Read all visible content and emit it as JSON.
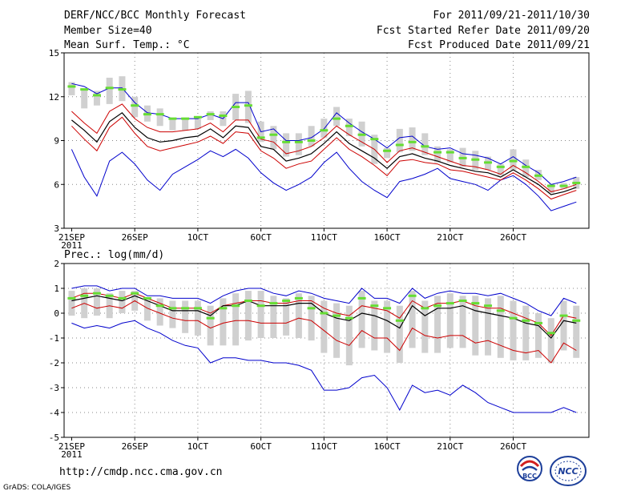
{
  "header": {
    "title": "DERF/NCC/BCC Monthly Forecast",
    "member_size": "Member Size=40",
    "variable_label": "Mean Surf. Temp.: °C",
    "forecast_period": "For 2011/09/21-2011/10/30",
    "start_date": "Fcst Started Refer Date 2011/09/20",
    "produced_date": "Fcst Produced Date 2011/09/21"
  },
  "footer": {
    "url": "http://cmdp.ncc.cma.gov.cn",
    "credit": "GrADS: COLA/IGES",
    "logo_left_text": "BCC",
    "logo_right_text": "NCC"
  },
  "colors": {
    "box": "#d0d0d0",
    "mean": "#66dd33",
    "outer": "#0000cc",
    "inner": "#cc0000",
    "median": "#000000"
  },
  "chart_data": [
    {
      "type": "box",
      "title": "Mean Surf. Temp.: °C",
      "ylabel": "°C",
      "ylim": [
        3,
        15
      ],
      "yticks": [
        3,
        6,
        9,
        12,
        15
      ],
      "xlim": [
        -0.6,
        41
      ],
      "xticks": [
        {
          "day": 0,
          "label": "21SEP",
          "sub": "2011"
        },
        {
          "day": 5,
          "label": "26SEP",
          "sub": ""
        },
        {
          "day": 10,
          "label": "1OCT",
          "sub": ""
        },
        {
          "day": 15,
          "label": "6OCT",
          "sub": ""
        },
        {
          "day": 20,
          "label": "11OCT",
          "sub": ""
        },
        {
          "day": 25,
          "label": "16OCT",
          "sub": ""
        },
        {
          "day": 30,
          "label": "21OCT",
          "sub": ""
        },
        {
          "day": 35,
          "label": "26OCT",
          "sub": ""
        }
      ],
      "grid": true,
      "series": {
        "upper_outer": [
          12.9,
          12.7,
          12.2,
          12.6,
          12.6,
          11.6,
          10.9,
          10.8,
          10.5,
          10.5,
          10.5,
          10.8,
          10.5,
          11.6,
          11.6,
          9.6,
          9.8,
          9.0,
          9.0,
          9.2,
          9.8,
          10.9,
          10.2,
          9.6,
          9.1,
          8.5,
          9.2,
          9.3,
          8.6,
          8.4,
          8.5,
          8.1,
          8.0,
          7.8,
          7.4,
          7.9,
          7.3,
          6.8,
          6.0,
          6.2,
          6.5
        ],
        "upper_inner": [
          11.0,
          10.2,
          9.5,
          11.0,
          11.5,
          10.5,
          9.9,
          9.6,
          9.6,
          9.7,
          9.8,
          10.2,
          9.6,
          10.4,
          10.4,
          9.1,
          8.9,
          8.1,
          8.3,
          8.6,
          9.2,
          10.0,
          9.4,
          8.9,
          8.4,
          7.5,
          8.3,
          8.5,
          8.2,
          7.9,
          7.6,
          7.3,
          7.2,
          7.0,
          6.7,
          7.3,
          6.8,
          6.2,
          5.5,
          5.7,
          6.0
        ],
        "median": [
          10.4,
          9.7,
          8.9,
          10.3,
          10.9,
          9.9,
          9.2,
          8.9,
          9.0,
          9.2,
          9.3,
          9.8,
          9.2,
          10.0,
          9.9,
          8.6,
          8.4,
          7.6,
          7.8,
          8.1,
          8.8,
          9.6,
          8.8,
          8.3,
          7.8,
          7.1,
          7.9,
          8.1,
          7.8,
          7.6,
          7.3,
          7.1,
          6.9,
          6.8,
          6.5,
          7.0,
          6.5,
          6.0,
          5.3,
          5.5,
          5.8
        ],
        "lower_inner": [
          10.0,
          9.1,
          8.3,
          9.9,
          10.6,
          9.5,
          8.6,
          8.3,
          8.5,
          8.7,
          8.9,
          9.3,
          8.8,
          9.6,
          9.5,
          8.3,
          7.8,
          7.1,
          7.4,
          7.6,
          8.4,
          9.2,
          8.4,
          7.9,
          7.3,
          6.6,
          7.6,
          7.7,
          7.5,
          7.4,
          7.0,
          6.9,
          6.7,
          6.5,
          6.3,
          6.8,
          6.3,
          5.7,
          5.0,
          5.3,
          5.6
        ],
        "lower_outer": [
          8.4,
          6.5,
          5.2,
          7.6,
          8.2,
          7.4,
          6.3,
          5.6,
          6.7,
          7.2,
          7.7,
          8.3,
          7.9,
          8.4,
          7.8,
          6.8,
          6.1,
          5.6,
          6.0,
          6.5,
          7.5,
          8.2,
          7.1,
          6.2,
          5.6,
          5.1,
          6.2,
          6.4,
          6.7,
          7.1,
          6.4,
          6.2,
          6.0,
          5.6,
          6.3,
          6.6,
          6.0,
          5.2,
          4.2,
          4.5,
          4.8
        ],
        "ensemble_mean": [
          12.7,
          12.5,
          12.1,
          12.6,
          12.5,
          11.4,
          10.8,
          10.8,
          10.5,
          10.5,
          10.6,
          10.8,
          10.7,
          11.3,
          11.4,
          9.2,
          9.4,
          8.9,
          8.9,
          9.0,
          9.7,
          10.5,
          10.0,
          9.4,
          9.1,
          8.3,
          8.7,
          8.9,
          8.6,
          8.2,
          8.2,
          7.8,
          7.7,
          7.5,
          7.2,
          7.6,
          7.2,
          6.6,
          5.9,
          5.9,
          6.1
        ],
        "box_top": [
          13.0,
          12.5,
          12.4,
          13.3,
          13.4,
          12.0,
          11.4,
          11.2,
          10.5,
          10.5,
          10.5,
          11.0,
          11.0,
          12.2,
          12.4,
          10.3,
          10.0,
          9.5,
          9.5,
          10.0,
          10.5,
          11.3,
          10.5,
          10.3,
          9.4,
          8.5,
          9.8,
          9.9,
          9.5,
          8.6,
          8.4,
          8.5,
          8.3,
          7.9,
          7.4,
          8.4,
          7.7,
          7.0,
          6.0,
          6.1,
          6.5
        ],
        "box_bottom": [
          12.1,
          11.2,
          11.4,
          11.5,
          11.7,
          10.6,
          10.3,
          10.0,
          9.7,
          9.7,
          9.8,
          10.4,
          10.0,
          10.4,
          10.2,
          8.9,
          8.4,
          7.9,
          8.0,
          8.6,
          9.2,
          10.0,
          9.3,
          8.6,
          7.4,
          7.8,
          8.2,
          8.3,
          8.0,
          7.5,
          7.5,
          7.2,
          7.0,
          7.0,
          6.6,
          7.0,
          6.5,
          6.3,
          5.4,
          5.7,
          5.7
        ]
      }
    },
    {
      "type": "box",
      "title": "Prec.: log(mm/d)",
      "ylabel": "log(mm/d)",
      "ylim": [
        -5,
        2
      ],
      "yticks": [
        -5,
        -4,
        -3,
        -2,
        -1,
        0,
        1,
        2
      ],
      "xlim": [
        -0.6,
        41
      ],
      "xticks": [
        {
          "day": 0,
          "label": "21SEP",
          "sub": "2011"
        },
        {
          "day": 5,
          "label": "26SEP",
          "sub": ""
        },
        {
          "day": 10,
          "label": "1OCT",
          "sub": ""
        },
        {
          "day": 15,
          "label": "6OCT",
          "sub": ""
        },
        {
          "day": 20,
          "label": "11OCT",
          "sub": ""
        },
        {
          "day": 25,
          "label": "16OCT",
          "sub": ""
        },
        {
          "day": 30,
          "label": "21OCT",
          "sub": ""
        },
        {
          "day": 35,
          "label": "26OCT",
          "sub": ""
        }
      ],
      "grid": true,
      "series": {
        "upper_outer": [
          1.0,
          1.1,
          1.1,
          0.9,
          1.0,
          1.0,
          0.7,
          0.7,
          0.6,
          0.6,
          0.6,
          0.4,
          0.7,
          0.9,
          1.0,
          1.0,
          0.8,
          0.7,
          0.9,
          0.8,
          0.6,
          0.5,
          0.4,
          1.0,
          0.6,
          0.6,
          0.4,
          1.0,
          0.6,
          0.8,
          0.9,
          0.8,
          0.8,
          0.7,
          0.8,
          0.6,
          0.4,
          0.1,
          -0.1,
          0.6,
          0.4
        ],
        "upper_inner": [
          0.6,
          0.8,
          0.8,
          0.7,
          0.6,
          0.8,
          0.6,
          0.4,
          0.2,
          0.2,
          0.2,
          0.0,
          0.3,
          0.4,
          0.5,
          0.5,
          0.4,
          0.4,
          0.5,
          0.5,
          0.2,
          0.0,
          -0.1,
          0.3,
          0.2,
          0.1,
          -0.2,
          0.5,
          0.2,
          0.4,
          0.4,
          0.5,
          0.3,
          0.2,
          0.2,
          0.0,
          -0.2,
          -0.4,
          -0.9,
          -0.1,
          -0.2
        ],
        "median": [
          0.5,
          0.6,
          0.7,
          0.6,
          0.5,
          0.7,
          0.5,
          0.3,
          0.1,
          0.1,
          0.1,
          -0.1,
          0.3,
          0.3,
          0.5,
          0.3,
          0.3,
          0.3,
          0.4,
          0.4,
          0.0,
          -0.2,
          -0.3,
          0.0,
          -0.1,
          -0.3,
          -0.6,
          0.3,
          -0.1,
          0.2,
          0.2,
          0.3,
          0.1,
          0.0,
          -0.1,
          -0.2,
          -0.4,
          -0.5,
          -1.0,
          -0.3,
          -0.4
        ],
        "lower_inner": [
          0.2,
          0.4,
          0.2,
          0.3,
          0.2,
          0.5,
          0.2,
          0.0,
          -0.2,
          -0.3,
          -0.3,
          -0.6,
          -0.4,
          -0.3,
          -0.3,
          -0.4,
          -0.4,
          -0.4,
          -0.2,
          -0.3,
          -0.7,
          -1.1,
          -1.3,
          -0.7,
          -1.0,
          -1.0,
          -1.5,
          -0.6,
          -0.9,
          -1.0,
          -0.9,
          -0.9,
          -1.2,
          -1.1,
          -1.3,
          -1.5,
          -1.6,
          -1.5,
          -2.0,
          -1.2,
          -1.5
        ],
        "lower_outer": [
          -0.4,
          -0.6,
          -0.5,
          -0.6,
          -0.4,
          -0.3,
          -0.6,
          -0.8,
          -1.1,
          -1.3,
          -1.4,
          -2.0,
          -1.8,
          -1.8,
          -1.9,
          -1.9,
          -2.0,
          -2.0,
          -2.1,
          -2.3,
          -3.1,
          -3.1,
          -3.0,
          -2.6,
          -2.5,
          -3.0,
          -3.9,
          -2.9,
          -3.2,
          -3.1,
          -3.3,
          -2.9,
          -3.2,
          -3.6,
          -3.8,
          -4.0,
          -4.0,
          -4.0,
          -4.0,
          -3.8,
          -4.0
        ],
        "ensemble_mean": [
          0.6,
          0.7,
          0.8,
          0.7,
          0.6,
          0.8,
          0.6,
          0.3,
          0.2,
          0.2,
          0.2,
          -0.2,
          0.2,
          0.3,
          0.5,
          0.3,
          0.4,
          0.5,
          0.6,
          0.2,
          0.0,
          -0.1,
          -0.2,
          0.6,
          0.3,
          0.2,
          -0.3,
          0.7,
          0.2,
          0.3,
          0.4,
          0.5,
          0.4,
          0.3,
          0.1,
          -0.2,
          -0.3,
          -0.4,
          -0.8,
          -0.1,
          -0.3
        ],
        "box_top": [
          0.9,
          1.0,
          1.0,
          0.8,
          0.9,
          0.9,
          0.6,
          0.6,
          0.5,
          0.5,
          0.5,
          0.3,
          0.6,
          0.8,
          0.9,
          0.9,
          0.7,
          0.6,
          0.8,
          0.7,
          0.5,
          0.4,
          0.3,
          0.9,
          0.5,
          0.5,
          0.3,
          0.9,
          0.5,
          0.7,
          0.8,
          0.7,
          0.7,
          0.6,
          0.7,
          0.5,
          0.3,
          0.0,
          -0.2,
          0.5,
          0.3
        ],
        "box_bottom": [
          -0.1,
          -0.2,
          -0.1,
          -0.2,
          0.0,
          0.1,
          -0.3,
          -0.5,
          -0.6,
          -0.8,
          -0.9,
          -1.3,
          -1.3,
          -1.3,
          -1.1,
          -1.0,
          -1.0,
          -0.9,
          -1.0,
          -1.1,
          -1.6,
          -1.8,
          -2.1,
          -1.4,
          -1.5,
          -1.6,
          -2.0,
          -1.4,
          -1.6,
          -1.6,
          -1.4,
          -1.4,
          -1.7,
          -1.7,
          -1.8,
          -1.9,
          -1.9,
          -1.8,
          -2.0,
          -1.5,
          -1.8
        ]
      }
    }
  ]
}
